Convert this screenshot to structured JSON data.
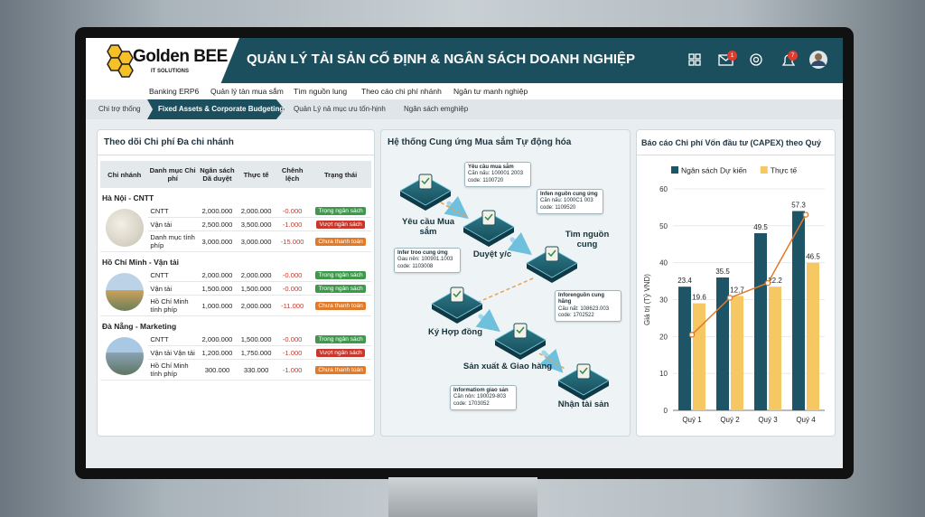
{
  "header": {
    "logo_title": "Golden BEE",
    "logo_subtitle": "IT SOLUTIONS",
    "title": "QUẢN LÝ TÀI SẢN CỐ ĐỊNH & NGÂN SÁCH DOANH NGHIỆP",
    "mail_badge": "1",
    "notification_badge": "7"
  },
  "nav": [
    "Banking ERP6",
    "Quản lý tàn mua sắm",
    "Tìm nguồn lung",
    "Theo cáo chi phí nhánh",
    "Ngân tư manh nghiệp"
  ],
  "breadcrumb": [
    "Chi trợ thống",
    "Fixed Assets & Corporate Budgeting",
    "Quản Lý nả mục ưu tốn-hịnh",
    "Ngân sách emghiệp"
  ],
  "cost_table": {
    "title": "Theo dõi Chi phí Đa chi nhánh",
    "columns": [
      "Chi nhánh",
      "Danh mục Chi phí",
      "Ngân sách Dã duyệt",
      "Thực tế",
      "Chênh lệch",
      "Trạng thái"
    ],
    "groups": [
      {
        "name": "Hà Nội - CNTT",
        "rows": [
          {
            "category": "CNTT",
            "budget": "2,000.000",
            "actual": "2,000.000",
            "diff": "-0.000",
            "status": "Trọng ngân sách",
            "status_color": "#3d9a4b"
          },
          {
            "category": "Vận tải",
            "budget": "2,500.000",
            "actual": "3,500.000",
            "diff": "-1.000",
            "status": "Vượt ngân sách",
            "status_color": "#c9372c"
          },
          {
            "category": "Danh mục tính phíp",
            "budget": "3,000.000",
            "actual": "3,000.000",
            "diff": "-15.000",
            "status": "Chưa thanh toán",
            "status_color": "#e07b2c"
          }
        ]
      },
      {
        "name": "Hồ Chí Minh - Vận tải",
        "rows": [
          {
            "category": "CNTT",
            "budget": "2,000.000",
            "actual": "2,000.000",
            "diff": "-0.000",
            "status": "Trong ngân sách",
            "status_color": "#3d9a4b"
          },
          {
            "category": "Vận tải",
            "budget": "1,500.000",
            "actual": "1,500.000",
            "diff": "-0.000",
            "status": "Trong ngân sách",
            "status_color": "#3d9a4b"
          },
          {
            "category": "Hồ Chí Minh tính phíp",
            "budget": "1,000.000",
            "actual": "2,000.000",
            "diff": "-11.000",
            "status": "Chưa thanh toán",
            "status_color": "#e07b2c"
          }
        ]
      },
      {
        "name": "Đà Nẵng - Marketing",
        "rows": [
          {
            "category": "CNTT",
            "budget": "2,000.000",
            "actual": "1,500.000",
            "diff": "-0.000",
            "status": "Trong ngân sách",
            "status_color": "#3d9a4b"
          },
          {
            "category": "Vận tải Vận tải",
            "budget": "1,200.000",
            "actual": "1,750.000",
            "diff": "-1.000",
            "status": "Vượt ngân sách",
            "status_color": "#c9372c"
          },
          {
            "category": "Hồ Chí Minh tính phíp",
            "budget": "300.000",
            "actual": "330.000",
            "diff": "-1.000",
            "status": "Chưa thanh toán",
            "status_color": "#e07b2c"
          }
        ]
      }
    ]
  },
  "procurement": {
    "title": "Hệ thống Cung ứng Mua sắm Tự động hóa",
    "steps": [
      "Yêu cầu Mua sắm",
      "Duyệt y/c",
      "Tìm nguồn cung",
      "Ký Hợp đồng",
      "Sản xuất & Giao hàng",
      "Nhận tài sản"
    ],
    "info_boxes": [
      [
        "Yêu cầu mua sắm",
        "Căn nấu: 100001 2003",
        "code: 1100720"
      ],
      [
        "Infen nguồn cung ứng",
        "Căn nấu: 1000C1 003",
        "code: 1109520"
      ],
      [
        "Infer troo cung ứng",
        "Gau nên: 100901.1003",
        "code: 1103008"
      ],
      [
        "Inforenguồn cung hãng",
        "Câu nất: 108623.003",
        "code: 1702522"
      ],
      [
        "Informatiom giao sản",
        "Căn nôn: 190029-803",
        "code: 1703052"
      ]
    ]
  },
  "chart_data": {
    "type": "bar",
    "title": "Báo cáo Chi phí Vốn đầu tư (CAPEX) theo Quý",
    "y_label": "Giá trị (Tỷ VND)",
    "categories": [
      "Quý 1",
      "Quý 2",
      "Quý 3",
      "Quý 4"
    ],
    "series": [
      {
        "name": "Ngân sách Dự kiến",
        "color": "#1d5566",
        "values": [
          33.5,
          36,
          48,
          54
        ]
      },
      {
        "name": "Thực tế",
        "color": "#f5c863",
        "values": [
          29,
          31,
          33.5,
          40
        ]
      }
    ],
    "trend": {
      "color": "#e07b2c",
      "values": [
        20.5,
        30.5,
        34.5,
        53
      ]
    },
    "annotations": [
      [
        "23.4",
        "35.5",
        "49.5",
        "57.3"
      ],
      [
        "19.6",
        "12.7",
        "22.2",
        "46.5"
      ]
    ],
    "ylim": [
      0,
      60
    ],
    "yticks": [
      0,
      10,
      20,
      30,
      40,
      50,
      60
    ],
    "grid": true,
    "legend": "top"
  }
}
